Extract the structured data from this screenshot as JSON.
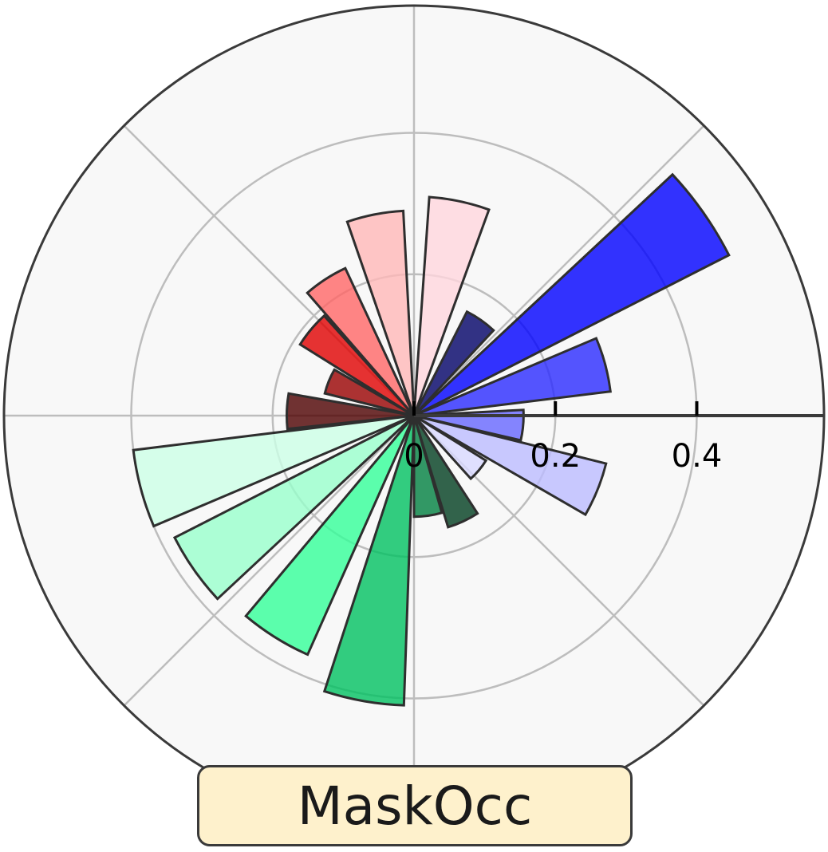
{
  "chart_data": {
    "type": "polar-bar",
    "title": "MaskOcc",
    "r_ticks": [
      0,
      0.2,
      0.4
    ],
    "r_tick_labels": [
      "0",
      "0.2",
      "0.4"
    ],
    "r_max": 0.58,
    "theta_zero": "east",
    "theta_direction": "counterclockwise",
    "grid": true,
    "bar_width_deg": 16,
    "bars": [
      {
        "angle_deg": 35,
        "value": 0.5,
        "color": "#0000ff",
        "opacity": 0.8
      },
      {
        "angle_deg": 15,
        "value": 0.28,
        "color": "#2a2aff",
        "opacity": 0.8
      },
      {
        "angle_deg": -5,
        "value": 0.155,
        "color": "#6666ff",
        "opacity": 0.8
      },
      {
        "angle_deg": -22,
        "value": 0.28,
        "color": "#bcbcff",
        "opacity": 0.8
      },
      {
        "angle_deg": -40,
        "value": 0.12,
        "color": "#d8d8ff",
        "opacity": 0.8
      },
      {
        "angle_deg": -65,
        "value": 0.165,
        "color": "#003d1f",
        "opacity": 0.8
      },
      {
        "angle_deg": -82,
        "value": 0.143,
        "color": "#008040",
        "opacity": 0.8
      },
      {
        "angle_deg": -100,
        "value": 0.41,
        "color": "#00c060",
        "opacity": 0.8
      },
      {
        "angle_deg": -122,
        "value": 0.37,
        "color": "#33ff99",
        "opacity": 0.8
      },
      {
        "angle_deg": -145,
        "value": 0.38,
        "color": "#99ffcc",
        "opacity": 0.8
      },
      {
        "angle_deg": -165,
        "value": 0.4,
        "color": "#ccffe6",
        "opacity": 0.8
      },
      {
        "angle_deg": 178,
        "value": 0.18,
        "color": "#4d0000",
        "opacity": 0.8
      },
      {
        "angle_deg": 158,
        "value": 0.13,
        "color": "#990000",
        "opacity": 0.8
      },
      {
        "angle_deg": 140,
        "value": 0.19,
        "color": "#e00000",
        "opacity": 0.8
      },
      {
        "angle_deg": 123,
        "value": 0.23,
        "color": "#ff6666",
        "opacity": 0.8
      },
      {
        "angle_deg": 101,
        "value": 0.29,
        "color": "#ffb8b8",
        "opacity": 0.8
      },
      {
        "angle_deg": 78,
        "value": 0.31,
        "color": "#ffd6dd",
        "opacity": 0.8
      },
      {
        "angle_deg": 55,
        "value": 0.165,
        "color": "#000066",
        "opacity": 0.8
      }
    ]
  }
}
